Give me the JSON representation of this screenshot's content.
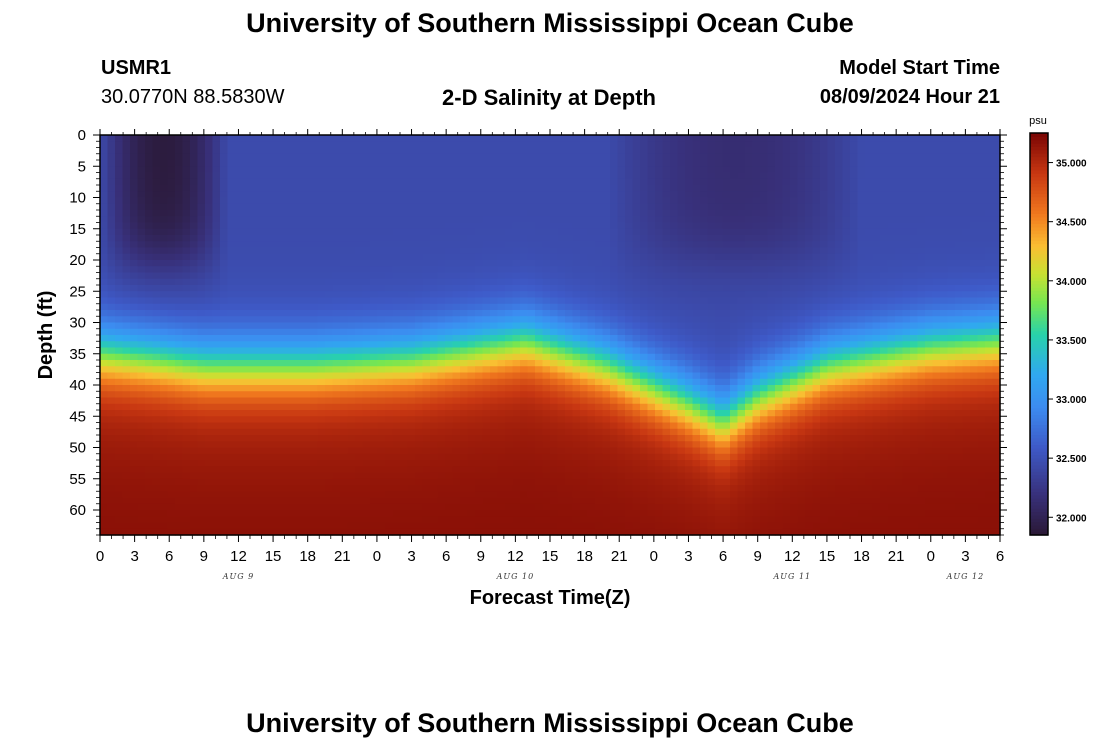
{
  "header": {
    "title": "University of Southern Mississippi Ocean Cube",
    "station_id": "USMR1",
    "station_coords": "30.0770N  88.5830W",
    "plot_title": "2-D Salinity at Depth",
    "model_start_label": "Model Start Time",
    "model_start_value": "08/09/2024 Hour 21"
  },
  "footer": {
    "title": "University of Southern Mississippi Ocean Cube"
  },
  "chart_data": {
    "type": "heatmap",
    "title": "2-D Salinity at Depth",
    "xlabel": "Forecast Time(Z)",
    "ylabel": "Depth (ft)",
    "x_hours_range": [
      0,
      78
    ],
    "x_tick_step_hours": 3,
    "x_tick_labels": [
      "0",
      "3",
      "6",
      "9",
      "12",
      "15",
      "18",
      "21",
      "0",
      "3",
      "6",
      "9",
      "12",
      "15",
      "18",
      "21",
      "0",
      "3",
      "6",
      "9",
      "12",
      "15",
      "18",
      "21",
      "0",
      "3",
      "6"
    ],
    "day_labels": [
      {
        "text": "AUG 9",
        "hour": 12
      },
      {
        "text": "AUG 10",
        "hour": 36
      },
      {
        "text": "AUG 11",
        "hour": 60
      },
      {
        "text": "AUG 12",
        "hour": 75
      }
    ],
    "y_range_ft": [
      0,
      64
    ],
    "y_ticks": [
      0,
      5,
      10,
      15,
      20,
      25,
      30,
      35,
      40,
      45,
      50,
      55,
      60
    ],
    "colorbar": {
      "units": "psu",
      "range": [
        31.85,
        35.25
      ],
      "ticks": [
        "32.000",
        "32.500",
        "33.000",
        "33.500",
        "34.000",
        "34.500",
        "35.000"
      ],
      "tick_values": [
        32.0,
        32.5,
        33.0,
        33.5,
        34.0,
        34.5,
        35.0
      ]
    },
    "halocline_depth_by_hour": [
      {
        "hour": 0,
        "depth_ft": 35
      },
      {
        "hour": 5,
        "depth_ft": 36
      },
      {
        "hour": 9,
        "depth_ft": 37
      },
      {
        "hour": 18,
        "depth_ft": 37
      },
      {
        "hour": 27,
        "depth_ft": 36
      },
      {
        "hour": 37,
        "depth_ft": 33
      },
      {
        "hour": 44,
        "depth_ft": 37
      },
      {
        "hour": 51,
        "depth_ft": 43
      },
      {
        "hour": 54,
        "depth_ft": 46
      },
      {
        "hour": 57,
        "depth_ft": 42
      },
      {
        "hour": 63,
        "depth_ft": 37
      },
      {
        "hour": 72,
        "depth_ft": 34
      },
      {
        "hour": 78,
        "depth_ft": 33
      }
    ],
    "surface_salinity_psu": 32.45,
    "bottom_salinity_psu": 35.1,
    "low_salinity_regions": [
      {
        "hour_start": 0,
        "hour_end": 11,
        "depth_top_ft": 0,
        "depth_bottom_ft": 20,
        "min_psu": 31.9
      },
      {
        "hour_start": 44,
        "hour_end": 66,
        "depth_top_ft": 0,
        "depth_bottom_ft": 20,
        "min_psu": 32.15
      }
    ]
  }
}
